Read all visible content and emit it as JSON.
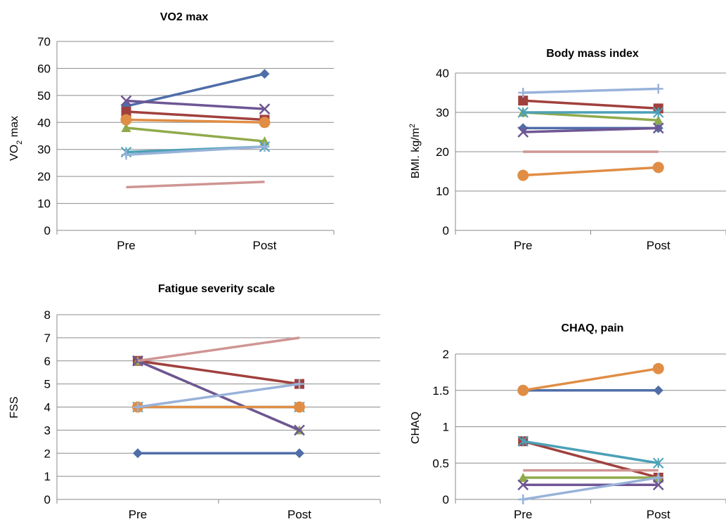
{
  "colors": {
    "blue": "#4F6EA8",
    "red": "#A0403D",
    "green": "#8FAA4B",
    "purple": "#6E5694",
    "teal": "#4BA1B7",
    "orange": "#E08D45",
    "lightblue": "#98B2D9",
    "pink": "#CF9593"
  },
  "chart_data": [
    {
      "type": "line",
      "title": "VO2 max",
      "ylabel_main": "VO",
      "ylabel_sub": "2",
      "ylabel_rest": " max",
      "categories": [
        "Pre",
        "Post"
      ],
      "ylim": [
        0,
        70
      ],
      "yticks": [
        0,
        10,
        20,
        30,
        40,
        50,
        60,
        70
      ],
      "grid": true,
      "series": [
        {
          "values": [
            46,
            58
          ],
          "color": "blue",
          "marker": "diamond"
        },
        {
          "values": [
            44,
            41
          ],
          "color": "red",
          "marker": "square"
        },
        {
          "values": [
            38,
            33
          ],
          "color": "green",
          "marker": "triangle"
        },
        {
          "values": [
            48,
            45
          ],
          "color": "purple",
          "marker": "x"
        },
        {
          "values": [
            29,
            31
          ],
          "color": "teal",
          "marker": "star"
        },
        {
          "values": [
            41,
            40
          ],
          "color": "orange",
          "marker": "circle"
        },
        {
          "values": [
            28,
            31
          ],
          "color": "lightblue",
          "marker": "plus"
        },
        {
          "values": [
            16,
            18
          ],
          "color": "pink",
          "marker": "none"
        }
      ]
    },
    {
      "type": "line",
      "title": "Body mass index",
      "ylabel_main": "BMI. kg/m",
      "ylabel_sup": "2",
      "categories": [
        "Pre",
        "Post"
      ],
      "ylim": [
        0,
        40
      ],
      "yticks": [
        0,
        10,
        20,
        30,
        40
      ],
      "grid": true,
      "series": [
        {
          "values": [
            26,
            26
          ],
          "color": "blue",
          "marker": "diamond"
        },
        {
          "values": [
            33,
            31
          ],
          "color": "red",
          "marker": "square"
        },
        {
          "values": [
            30,
            28
          ],
          "color": "green",
          "marker": "triangle"
        },
        {
          "values": [
            25,
            26
          ],
          "color": "purple",
          "marker": "x"
        },
        {
          "values": [
            30,
            30
          ],
          "color": "teal",
          "marker": "star"
        },
        {
          "values": [
            14,
            16
          ],
          "color": "orange",
          "marker": "circle"
        },
        {
          "values": [
            35,
            36
          ],
          "color": "lightblue",
          "marker": "plus"
        },
        {
          "values": [
            20,
            20
          ],
          "color": "pink",
          "marker": "none"
        }
      ]
    },
    {
      "type": "line",
      "title": "Fatigue severity scale",
      "ylabel_main": "FSS",
      "categories": [
        "Pre",
        "Post"
      ],
      "ylim": [
        0,
        8
      ],
      "yticks": [
        0,
        1,
        2,
        3,
        4,
        5,
        6,
        7,
        8
      ],
      "grid": true,
      "series": [
        {
          "values": [
            2,
            2
          ],
          "color": "blue",
          "marker": "diamond"
        },
        {
          "values": [
            6,
            5
          ],
          "color": "red",
          "marker": "square"
        },
        {
          "values": [
            6,
            3
          ],
          "color": "green",
          "marker": "triangle"
        },
        {
          "values": [
            6,
            3
          ],
          "color": "purple",
          "marker": "x"
        },
        {
          "values": [
            4,
            4
          ],
          "color": "teal",
          "marker": "star"
        },
        {
          "values": [
            4,
            4
          ],
          "color": "orange",
          "marker": "circle"
        },
        {
          "values": [
            4,
            5
          ],
          "color": "lightblue",
          "marker": "plus"
        },
        {
          "values": [
            6,
            7
          ],
          "color": "pink",
          "marker": "none"
        }
      ]
    },
    {
      "type": "line",
      "title": "CHAQ, pain",
      "ylabel_main": "CHAQ",
      "categories": [
        "Pre",
        "Post"
      ],
      "ylim": [
        0,
        2
      ],
      "yticks": [
        "0",
        "0.5",
        "1",
        "1.5",
        "2"
      ],
      "grid": true,
      "series": [
        {
          "values": [
            1.5,
            1.5
          ],
          "color": "blue",
          "marker": "diamond"
        },
        {
          "values": [
            0.8,
            0.3
          ],
          "color": "red",
          "marker": "square"
        },
        {
          "values": [
            0.3,
            0.3
          ],
          "color": "green",
          "marker": "triangle"
        },
        {
          "values": [
            0.2,
            0.2
          ],
          "color": "purple",
          "marker": "x"
        },
        {
          "values": [
            0.8,
            0.5
          ],
          "color": "teal",
          "marker": "star"
        },
        {
          "values": [
            1.5,
            1.8
          ],
          "color": "orange",
          "marker": "circle"
        },
        {
          "values": [
            0,
            0.3
          ],
          "color": "lightblue",
          "marker": "plus"
        },
        {
          "values": [
            0.4,
            0.4
          ],
          "color": "pink",
          "marker": "none"
        }
      ]
    }
  ]
}
